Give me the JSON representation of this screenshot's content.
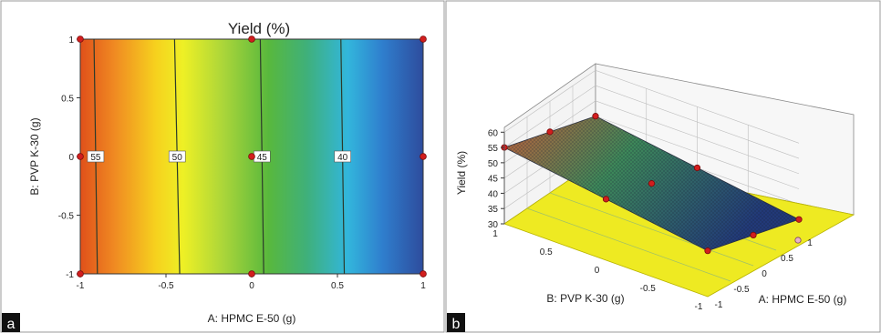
{
  "chart_data": [
    {
      "panel": "a",
      "type": "contour",
      "title": "Yield (%)",
      "xlabel": "A: HPMC E-50 (g)",
      "ylabel": "B: PVP K-30 (g)",
      "xlim": [
        -1,
        1
      ],
      "ylim": [
        -1,
        1
      ],
      "x_ticks": [
        "-1",
        "-0.5",
        "0",
        "0.5",
        "1"
      ],
      "y_ticks": [
        "1",
        "0.5",
        "0",
        "-0.5",
        "-1"
      ],
      "contours": [
        {
          "level": "55",
          "x_top": -0.92,
          "x_bottom": -0.9
        },
        {
          "level": "50",
          "x_top": -0.45,
          "x_bottom": -0.42
        },
        {
          "level": "45",
          "x_top": 0.05,
          "x_bottom": 0.07
        },
        {
          "level": "40",
          "x_top": 0.52,
          "x_bottom": 0.54
        }
      ],
      "design_points": [
        {
          "x": -1,
          "y": 1
        },
        {
          "x": 0,
          "y": 1
        },
        {
          "x": 1,
          "y": 1
        },
        {
          "x": -1,
          "y": 0
        },
        {
          "x": 0,
          "y": 0
        },
        {
          "x": 1,
          "y": 0
        },
        {
          "x": -1,
          "y": -1
        },
        {
          "x": 0,
          "y": -1
        },
        {
          "x": 1,
          "y": -1
        }
      ]
    },
    {
      "panel": "b",
      "type": "surface3d",
      "zlabel": "Yield (%)",
      "xlabel": "A: HPMC E-50 (g)",
      "ylabel": "B: PVP K-30 (g)",
      "zlim": [
        30,
        60
      ],
      "z_ticks": [
        "60",
        "55",
        "50",
        "45",
        "40",
        "35",
        "30"
      ],
      "a_ticks": [
        "1",
        "0.5",
        "0",
        "-0.5",
        "-1"
      ],
      "b_ticks": [
        "1",
        "0.5",
        "0",
        "-0.5",
        "-1"
      ],
      "surface_corners": [
        {
          "a": -1,
          "b": 1,
          "z": 55
        },
        {
          "a": 1,
          "b": 1,
          "z": 45
        },
        {
          "a": -1,
          "b": -1,
          "z": 45
        },
        {
          "a": 1,
          "b": -1,
          "z": 35
        }
      ],
      "design_points": [
        {
          "a": -1,
          "b": 1,
          "z": 55
        },
        {
          "a": 0,
          "b": 1,
          "z": 50
        },
        {
          "a": 1,
          "b": 1,
          "z": 45
        },
        {
          "a": -1,
          "b": 0,
          "z": 50
        },
        {
          "a": 0,
          "b": 0,
          "z": 45
        },
        {
          "a": 1,
          "b": 0,
          "z": 40
        },
        {
          "a": -1,
          "b": -1,
          "z": 45
        },
        {
          "a": 0,
          "b": -1,
          "z": 40
        },
        {
          "a": 1,
          "b": -1,
          "z": 35
        }
      ]
    }
  ],
  "panel_labels": [
    "a",
    "b"
  ]
}
